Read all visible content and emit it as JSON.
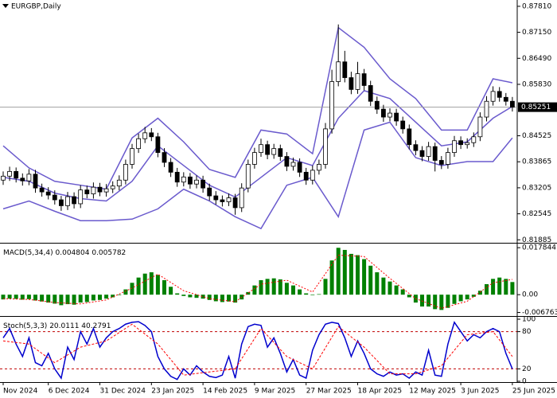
{
  "chart_data": [
    {
      "type": "candlestick",
      "title": "EURGBP,Daily",
      "categories": [
        "Nov 2024",
        null,
        null,
        null,
        null,
        null,
        null,
        "6 Dec 2024",
        null,
        null,
        null,
        null,
        null,
        null,
        null,
        "31 Dec 2024",
        null,
        null,
        null,
        null,
        null,
        null,
        null,
        "23 Jan 2025",
        null,
        null,
        null,
        null,
        null,
        null,
        null,
        "14 Feb 2025",
        null,
        null,
        null,
        null,
        null,
        null,
        null,
        "9 Mar 2025",
        null,
        null,
        null,
        null,
        null,
        null,
        null,
        "27 Mar 2025",
        null,
        null,
        null,
        null,
        null,
        null,
        null,
        "18 Apr 2025",
        null,
        null,
        null,
        null,
        null,
        null,
        null,
        "12 May 2025",
        null,
        null,
        null,
        null,
        null,
        null,
        null,
        "3 Jun 2025",
        null,
        null,
        null,
        null,
        null,
        null,
        null,
        "25 Jun 2025"
      ],
      "open": [
        0.834,
        0.835,
        0.8362,
        0.8345,
        0.8338,
        0.8355,
        0.832,
        0.831,
        0.8302,
        0.829,
        0.8275,
        0.8298,
        0.828,
        0.8315,
        0.8305,
        0.8322,
        0.831,
        0.8318,
        0.8325,
        0.834,
        0.838,
        0.842,
        0.8445,
        0.846,
        0.845,
        0.841,
        0.8385,
        0.836,
        0.8335,
        0.8348,
        0.833,
        0.834,
        0.832,
        0.83,
        0.829,
        0.8285,
        0.8295,
        0.827,
        0.832,
        0.838,
        0.841,
        0.843,
        0.8405,
        0.842,
        0.84,
        0.8375,
        0.8385,
        0.836,
        0.834,
        0.8365,
        0.838,
        0.847,
        0.859,
        0.864,
        0.86,
        0.857,
        0.861,
        0.858,
        0.854,
        0.852,
        0.85,
        0.851,
        0.849,
        0.847,
        0.843,
        0.8415,
        0.84,
        0.8425,
        0.839,
        0.838,
        0.841,
        0.844,
        0.843,
        0.8435,
        0.845,
        0.85,
        0.854,
        0.8565,
        0.855,
        0.854
      ],
      "high": [
        0.8362,
        0.8374,
        0.8372,
        0.8357,
        0.8368,
        0.8366,
        0.8331,
        0.8322,
        0.8314,
        0.83,
        0.831,
        0.8309,
        0.8327,
        0.8326,
        0.8334,
        0.8333,
        0.833,
        0.8337,
        0.8352,
        0.8392,
        0.8432,
        0.8458,
        0.8475,
        0.8472,
        0.846,
        0.8421,
        0.8396,
        0.8371,
        0.836,
        0.8358,
        0.8352,
        0.8351,
        0.8331,
        0.8312,
        0.8301,
        0.8306,
        0.8305,
        0.8332,
        0.8392,
        0.8422,
        0.8445,
        0.844,
        0.8432,
        0.843,
        0.8411,
        0.8397,
        0.8395,
        0.8371,
        0.8377,
        0.8392,
        0.8485,
        0.862,
        0.8735,
        0.8668,
        0.8615,
        0.864,
        0.8622,
        0.8592,
        0.8552,
        0.8531,
        0.8522,
        0.8521,
        0.8501,
        0.8481,
        0.8441,
        0.8426,
        0.8437,
        0.8435,
        0.8401,
        0.8422,
        0.8452,
        0.8451,
        0.8446,
        0.8461,
        0.8512,
        0.8553,
        0.8578,
        0.8576,
        0.8561,
        0.8551
      ],
      "low": [
        0.8328,
        0.8338,
        0.8334,
        0.8326,
        0.8327,
        0.8308,
        0.8298,
        0.8291,
        0.8278,
        0.8262,
        0.8264,
        0.8268,
        0.8269,
        0.8294,
        0.8293,
        0.8299,
        0.8298,
        0.8307,
        0.8314,
        0.8329,
        0.8369,
        0.8409,
        0.8434,
        0.8439,
        0.8398,
        0.8373,
        0.8348,
        0.8323,
        0.8324,
        0.8318,
        0.8319,
        0.8308,
        0.8288,
        0.8278,
        0.8273,
        0.8274,
        0.8252,
        0.8259,
        0.8309,
        0.8369,
        0.8399,
        0.8393,
        0.8394,
        0.8389,
        0.8363,
        0.8364,
        0.8348,
        0.8328,
        0.8329,
        0.8354,
        0.8369,
        0.8458,
        0.8578,
        0.8588,
        0.8558,
        0.8559,
        0.8568,
        0.8528,
        0.8508,
        0.8488,
        0.8489,
        0.8478,
        0.8458,
        0.8418,
        0.8403,
        0.8388,
        0.8389,
        0.8362,
        0.8368,
        0.8369,
        0.8399,
        0.8419,
        0.842,
        0.8424,
        0.8439,
        0.8489,
        0.8529,
        0.8539,
        0.8529,
        0.8514
      ],
      "close": [
        0.835,
        0.8362,
        0.8345,
        0.8338,
        0.8355,
        0.832,
        0.831,
        0.8302,
        0.829,
        0.8275,
        0.8298,
        0.828,
        0.8315,
        0.8305,
        0.8322,
        0.831,
        0.8318,
        0.8325,
        0.834,
        0.838,
        0.842,
        0.8445,
        0.846,
        0.845,
        0.841,
        0.8385,
        0.836,
        0.8335,
        0.8348,
        0.833,
        0.834,
        0.832,
        0.83,
        0.829,
        0.8285,
        0.8295,
        0.827,
        0.832,
        0.838,
        0.841,
        0.843,
        0.8405,
        0.842,
        0.84,
        0.8375,
        0.8385,
        0.836,
        0.834,
        0.8365,
        0.838,
        0.847,
        0.859,
        0.864,
        0.86,
        0.857,
        0.861,
        0.858,
        0.854,
        0.852,
        0.85,
        0.851,
        0.849,
        0.847,
        0.843,
        0.8415,
        0.84,
        0.8425,
        0.839,
        0.838,
        0.841,
        0.844,
        0.843,
        0.8435,
        0.845,
        0.85,
        0.854,
        0.8565,
        0.855,
        0.854,
        0.8525
      ],
      "bull_color": "#ffffff",
      "bear_color": "#000000",
      "bands": {
        "color": "#6a5acd",
        "x": [
          0,
          4,
          8,
          12,
          16,
          20,
          24,
          28,
          32,
          36,
          40,
          44,
          48,
          52,
          56,
          60,
          64,
          68,
          72,
          76,
          79
        ],
        "upper": [
          0.8427,
          0.8371,
          0.8337,
          0.8327,
          0.8317,
          0.8447,
          0.8497,
          0.8437,
          0.8367,
          0.8347,
          0.8467,
          0.8457,
          0.8407,
          0.8727,
          0.8677,
          0.8597,
          0.8547,
          0.8467,
          0.8467,
          0.8597,
          0.8587
        ],
        "middle": [
          0.8347,
          0.8337,
          0.8307,
          0.8293,
          0.8287,
          0.8337,
          0.8427,
          0.8377,
          0.8327,
          0.8297,
          0.8347,
          0.8397,
          0.8377,
          0.8497,
          0.8567,
          0.8547,
          0.8487,
          0.8427,
          0.8437,
          0.8497,
          0.8527
        ],
        "lower": [
          0.8267,
          0.8287,
          0.8261,
          0.8237,
          0.8237,
          0.8241,
          0.8267,
          0.8317,
          0.8287,
          0.8247,
          0.8217,
          0.8327,
          0.8347,
          0.8247,
          0.8467,
          0.8487,
          0.8397,
          0.8377,
          0.8387,
          0.8387,
          0.8447
        ]
      },
      "last_price": 0.85251,
      "ylim": [
        0.8185,
        0.8797
      ],
      "yticks": [
        {
          "value": 0.8781,
          "label": "0.87810"
        },
        {
          "value": 0.8715,
          "label": "0.87150"
        },
        {
          "value": 0.8649,
          "label": "0.86490"
        },
        {
          "value": 0.8583,
          "label": "0.85830"
        },
        0.84525,
        0.83865,
        0.83205,
        0.82545,
        0.81885
      ]
    },
    {
      "type": "macd",
      "title": "MACD(5,34,4)",
      "readings": [
        0.004804,
        0.005782
      ],
      "color": "#008000",
      "values": [
        -0.0018,
        -0.0015,
        -0.0016,
        -0.0019,
        -0.0017,
        -0.0022,
        -0.0026,
        -0.003,
        -0.0034,
        -0.004,
        -0.0036,
        -0.0038,
        -0.003,
        -0.0028,
        -0.0022,
        -0.002,
        -0.0015,
        -0.001,
        -0.0002,
        0.002,
        0.0045,
        0.0065,
        0.008,
        0.0085,
        0.0075,
        0.0055,
        0.003,
        0.0005,
        -0.0005,
        -0.001,
        -0.0012,
        -0.0015,
        -0.002,
        -0.0025,
        -0.0028,
        -0.0026,
        -0.003,
        -0.0018,
        0.001,
        0.0035,
        0.0055,
        0.006,
        0.0062,
        0.0058,
        0.0045,
        0.0035,
        0.002,
        0.0005,
        -0.0002,
        0.0002,
        0.006,
        0.013,
        0.0178,
        0.017,
        0.0155,
        0.015,
        0.0135,
        0.011,
        0.0085,
        0.0065,
        0.005,
        0.0035,
        0.002,
        -0.001,
        -0.003,
        -0.0045,
        -0.0045,
        -0.0055,
        -0.0058,
        -0.005,
        -0.0035,
        -0.0025,
        -0.0018,
        -0.0008,
        0.0015,
        0.004,
        0.006,
        0.0065,
        0.006,
        0.0048
      ],
      "signal": {
        "color": "#ff0000",
        "x": [
          0,
          4,
          8,
          12,
          16,
          20,
          24,
          28,
          32,
          36,
          40,
          44,
          48,
          52,
          56,
          60,
          64,
          68,
          72,
          76,
          79
        ],
        "values": [
          -0.0015,
          -0.0018,
          -0.003,
          -0.0035,
          -0.002,
          0.0025,
          0.0078,
          0.0015,
          -0.0015,
          -0.0027,
          0.004,
          0.0055,
          0.001,
          0.015,
          0.0145,
          0.0062,
          -0.0015,
          -0.0052,
          -0.0025,
          0.0045,
          0.0058
        ]
      },
      "ylim": [
        -0.0075,
        0.0188
      ],
      "yticks": [
        0.017844,
        {
          "value": 0,
          "label": "0.00"
        },
        -0.006763
      ]
    },
    {
      "type": "stochastic",
      "title": "Stoch(5,3,3)",
      "readings": [
        20.0111,
        40.2791
      ],
      "color": "#0000cd",
      "values": [
        70,
        85,
        60,
        40,
        70,
        30,
        25,
        45,
        20,
        5,
        55,
        35,
        80,
        60,
        85,
        55,
        70,
        80,
        85,
        92,
        95,
        96,
        90,
        80,
        40,
        20,
        8,
        3,
        20,
        10,
        25,
        15,
        8,
        6,
        10,
        40,
        5,
        60,
        88,
        92,
        90,
        55,
        70,
        45,
        15,
        35,
        10,
        5,
        50,
        75,
        92,
        95,
        93,
        70,
        40,
        65,
        45,
        20,
        12,
        8,
        15,
        10,
        12,
        5,
        15,
        10,
        50,
        10,
        8,
        60,
        95,
        80,
        65,
        75,
        70,
        80,
        85,
        80,
        45,
        20
      ],
      "signal": {
        "color": "#ff0000",
        "x": [
          0,
          4,
          8,
          12,
          16,
          20,
          24,
          28,
          32,
          36,
          40,
          44,
          48,
          52,
          56,
          60,
          64,
          68,
          72,
          76,
          79
        ],
        "values": [
          65,
          60,
          30,
          55,
          65,
          92,
          60,
          10,
          15,
          20,
          85,
          40,
          20,
          88,
          55,
          12,
          12,
          25,
          75,
          80,
          40
        ]
      },
      "levels": [
        20,
        80
      ],
      "level_color": "#c00000",
      "ylim": [
        0,
        100
      ],
      "yticks": [
        100,
        80,
        20,
        0
      ]
    }
  ]
}
